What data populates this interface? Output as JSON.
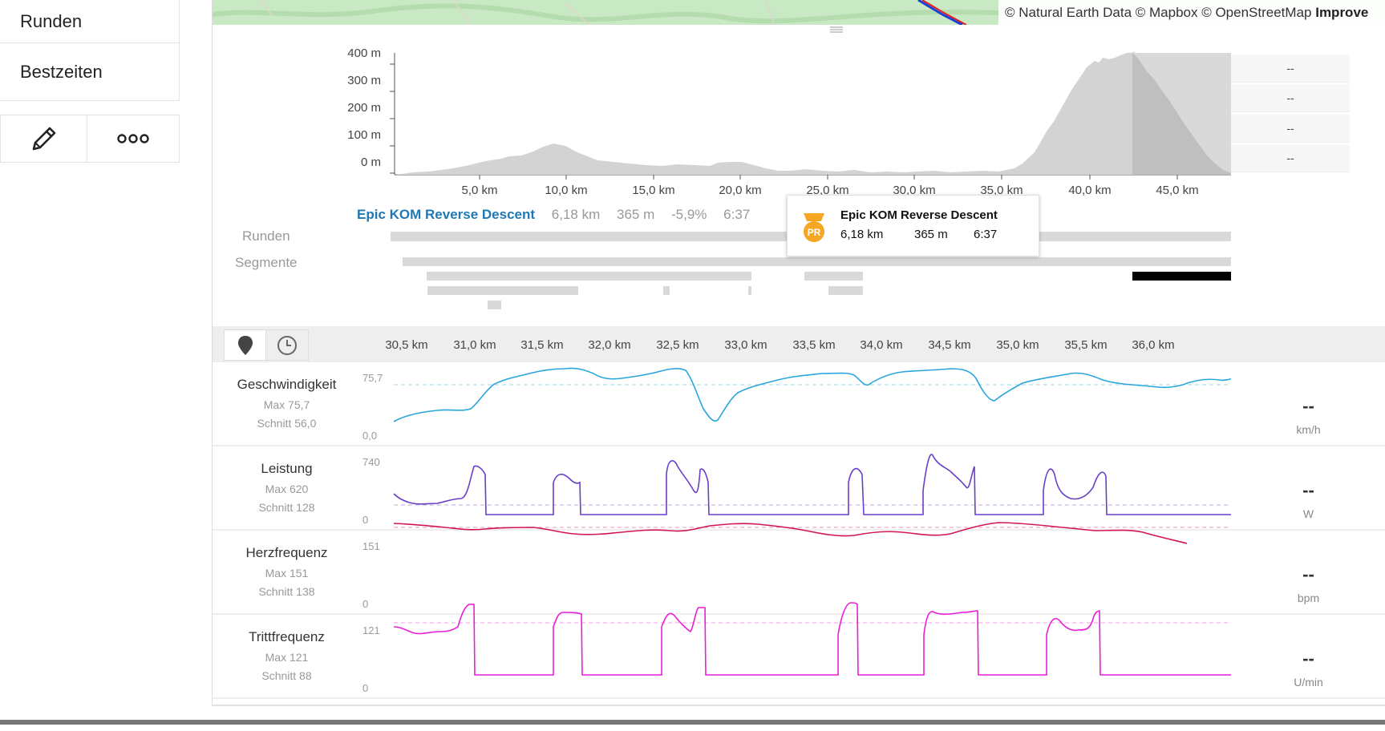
{
  "sidebar": {
    "items": [
      {
        "label": "Runden"
      },
      {
        "label": "Bestzeiten"
      }
    ],
    "actions": [
      {
        "icon": "pencil-icon"
      },
      {
        "icon": "more-icon"
      }
    ]
  },
  "map": {
    "attribution_prefix": "© Natural Earth Data © Mapbox © OpenStreetMap",
    "attribution_link": "Improve"
  },
  "elevation": {
    "y_ticks": [
      "400 m",
      "300 m",
      "200 m",
      "100 m",
      "0 m"
    ],
    "x_ticks": [
      "5,0 km",
      "10,0 km",
      "15,0 km",
      "20,0 km",
      "25,0 km",
      "30,0 km",
      "35,0 km",
      "40,0 km",
      "45,0 km"
    ],
    "right_values": [
      "--",
      "--",
      "--",
      "--"
    ]
  },
  "segment_summary": {
    "name": "Epic KOM Reverse Descent",
    "distance": "6,18 km",
    "elevation": "365 m",
    "grade": "-5,9%",
    "time": "6:37"
  },
  "tooltip": {
    "badge": "PR",
    "name": "Epic KOM Reverse Descent",
    "distance": "6,18 km",
    "elevation": "365 m",
    "time": "6:37"
  },
  "lanes": {
    "laps_label": "Runden",
    "segments_label": "Segmente"
  },
  "stream_axis": {
    "x_ticks": [
      "30,5 km",
      "31,0 km",
      "31,5 km",
      "32,0 km",
      "32,5 km",
      "33,0 km",
      "33,5 km",
      "34,0 km",
      "34,5 km",
      "35,0 km",
      "35,5 km",
      "36,0 km"
    ]
  },
  "metrics": [
    {
      "name": "Geschwindigkeit",
      "max": "Max 75,7",
      "avg": "Schnitt 56,0",
      "ymax": "75,7",
      "ymin": "0,0",
      "value": "--",
      "unit": "km/h",
      "color": "#2aa5dc"
    },
    {
      "name": "Leistung",
      "max": "Max 620",
      "avg": "Schnitt 128",
      "ymax": "740",
      "ymin": "0",
      "value": "--",
      "unit": "W",
      "color": "#6a3fc7"
    },
    {
      "name": "Herzfrequenz",
      "max": "Max 151",
      "avg": "Schnitt 138",
      "ymax": "151",
      "ymin": "0",
      "value": "--",
      "unit": "bpm",
      "color": "#d4145a"
    },
    {
      "name": "Trittfrequenz",
      "max": "Max 121",
      "avg": "Schnitt 88",
      "ymax": "121",
      "ymin": "0",
      "value": "--",
      "unit": "U/min",
      "color": "#e91fd7"
    }
  ]
}
